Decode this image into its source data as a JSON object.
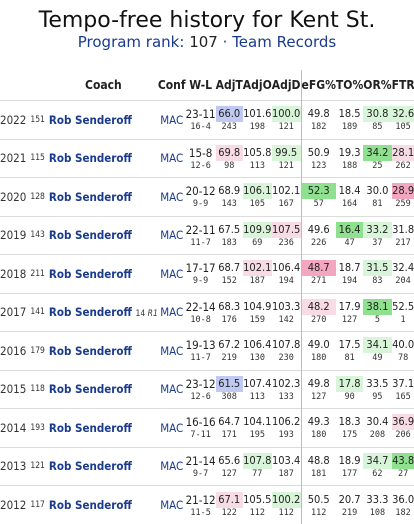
{
  "header": {
    "title": "Tempo-free history for Kent St.",
    "rank_label": "Program rank:",
    "rank_value": "107",
    "separator": "·",
    "team_records_link": "Team Records"
  },
  "columns": {
    "coach": "Coach",
    "conf": "Conf",
    "wl": "W-L",
    "adjt": "AdjT",
    "adjo": "AdjO",
    "adjd": "AdjD",
    "efg": "eFG%",
    "to": "TO%",
    "or": "OR%",
    "ftr": "FTR"
  },
  "rows": [
    {
      "year": "2022",
      "rank": "151",
      "coach": "Rob Senderoff",
      "note": "",
      "conf": "MAC",
      "wl": "23-11",
      "wl_sub": "16-4",
      "adjt": "66.0",
      "adjt_rk": "243",
      "adjo": "101.6",
      "adjo_rk": "198",
      "adjd": "100.0",
      "adjd_rk": "121",
      "efg": "49.8",
      "efg_rk": "182",
      "to": "18.5",
      "to_rk": "189",
      "or": "30.8",
      "or_rk": "85",
      "ftr": "32.6",
      "ftr_rk": "105"
    },
    {
      "year": "2021",
      "rank": "115",
      "coach": "Rob Senderoff",
      "note": "",
      "conf": "MAC",
      "wl": "15-8",
      "wl_sub": "12-6",
      "adjt": "69.8",
      "adjt_rk": "98",
      "adjo": "105.8",
      "adjo_rk": "113",
      "adjd": "99.5",
      "adjd_rk": "121",
      "efg": "50.9",
      "efg_rk": "123",
      "to": "19.3",
      "to_rk": "188",
      "or": "34.2",
      "or_rk": "25",
      "ftr": "28.1",
      "ftr_rk": "262"
    },
    {
      "year": "2020",
      "rank": "128",
      "coach": "Rob Senderoff",
      "note": "",
      "conf": "MAC",
      "wl": "20-12",
      "wl_sub": "9-9",
      "adjt": "68.9",
      "adjt_rk": "143",
      "adjo": "106.1",
      "adjo_rk": "105",
      "adjd": "102.1",
      "adjd_rk": "167",
      "efg": "52.3",
      "efg_rk": "57",
      "to": "18.4",
      "to_rk": "164",
      "or": "30.0",
      "or_rk": "81",
      "ftr": "28.9",
      "ftr_rk": "259"
    },
    {
      "year": "2019",
      "rank": "143",
      "coach": "Rob Senderoff",
      "note": "",
      "conf": "MAC",
      "wl": "22-11",
      "wl_sub": "11-7",
      "adjt": "67.5",
      "adjt_rk": "183",
      "adjo": "109.9",
      "adjo_rk": "69",
      "adjd": "107.5",
      "adjd_rk": "236",
      "efg": "49.6",
      "efg_rk": "226",
      "to": "16.4",
      "to_rk": "47",
      "or": "33.2",
      "or_rk": "37",
      "ftr": "31.8",
      "ftr_rk": "217"
    },
    {
      "year": "2018",
      "rank": "211",
      "coach": "Rob Senderoff",
      "note": "",
      "conf": "MAC",
      "wl": "17-17",
      "wl_sub": "9-9",
      "adjt": "68.7",
      "adjt_rk": "152",
      "adjo": "102.1",
      "adjo_rk": "187",
      "adjd": "106.4",
      "adjd_rk": "194",
      "efg": "48.7",
      "efg_rk": "271",
      "to": "18.7",
      "to_rk": "194",
      "or": "31.5",
      "or_rk": "83",
      "ftr": "32.4",
      "ftr_rk": "204"
    },
    {
      "year": "2017",
      "rank": "141",
      "coach": "Rob Senderoff",
      "note": "14 R1",
      "conf": "MAC",
      "wl": "22-14",
      "wl_sub": "10-8",
      "adjt": "68.3",
      "adjt_rk": "176",
      "adjo": "104.9",
      "adjo_rk": "159",
      "adjd": "103.3",
      "adjd_rk": "142",
      "efg": "48.2",
      "efg_rk": "270",
      "to": "17.9",
      "to_rk": "127",
      "or": "38.1",
      "or_rk": "5",
      "ftr": "52.5",
      "ftr_rk": "1"
    },
    {
      "year": "2016",
      "rank": "179",
      "coach": "Rob Senderoff",
      "note": "",
      "conf": "MAC",
      "wl": "19-13",
      "wl_sub": "11-7",
      "adjt": "67.2",
      "adjt_rk": "219",
      "adjo": "106.4",
      "adjo_rk": "130",
      "adjd": "107.8",
      "adjd_rk": "230",
      "efg": "49.0",
      "efg_rk": "180",
      "to": "17.5",
      "to_rk": "81",
      "or": "34.1",
      "or_rk": "49",
      "ftr": "40.0",
      "ftr_rk": "78"
    },
    {
      "year": "2015",
      "rank": "118",
      "coach": "Rob Senderoff",
      "note": "",
      "conf": "MAC",
      "wl": "23-12",
      "wl_sub": "12-6",
      "adjt": "61.5",
      "adjt_rk": "308",
      "adjo": "107.4",
      "adjo_rk": "113",
      "adjd": "102.3",
      "adjd_rk": "133",
      "efg": "49.8",
      "efg_rk": "127",
      "to": "17.8",
      "to_rk": "90",
      "or": "33.5",
      "or_rk": "95",
      "ftr": "37.1",
      "ftr_rk": "165"
    },
    {
      "year": "2014",
      "rank": "193",
      "coach": "Rob Senderoff",
      "note": "",
      "conf": "MAC",
      "wl": "16-16",
      "wl_sub": "7-11",
      "adjt": "64.7",
      "adjt_rk": "171",
      "adjo": "104.1",
      "adjo_rk": "195",
      "adjd": "106.2",
      "adjd_rk": "193",
      "efg": "49.3",
      "efg_rk": "180",
      "to": "18.3",
      "to_rk": "175",
      "or": "30.4",
      "or_rk": "208",
      "ftr": "36.9",
      "ftr_rk": "206"
    },
    {
      "year": "2013",
      "rank": "121",
      "coach": "Rob Senderoff",
      "note": "",
      "conf": "MAC",
      "wl": "21-14",
      "wl_sub": "9-7",
      "adjt": "65.6",
      "adjt_rk": "127",
      "adjo": "107.8",
      "adjo_rk": "77",
      "adjd": "103.4",
      "adjd_rk": "187",
      "efg": "48.8",
      "efg_rk": "181",
      "to": "18.9",
      "to_rk": "177",
      "or": "34.7",
      "or_rk": "62",
      "ftr": "43.8",
      "ftr_rk": "27"
    },
    {
      "year": "2012",
      "rank": "117",
      "coach": "Rob Senderoff",
      "note": "",
      "conf": "MAC",
      "wl": "21-12",
      "wl_sub": "11-5",
      "adjt": "67.1",
      "adjt_rk": "122",
      "adjo": "105.5",
      "adjo_rk": "112",
      "adjd": "100.2",
      "adjd_rk": "112",
      "efg": "50.5",
      "efg_rk": "112",
      "to": "20.7",
      "to_rk": "219",
      "or": "33.3",
      "or_rk": "108",
      "ftr": "36.0",
      "ftr_rk": "182"
    }
  ],
  "colors": {
    "title": "#111111",
    "link": "#1a3a8c",
    "good_strong": "#8fe08f",
    "good_light": "#d9f5d9",
    "bad_strong": "#f2a6bf",
    "bad_light": "#f7dbe5",
    "blue_highlight": "#bfc9f2"
  }
}
